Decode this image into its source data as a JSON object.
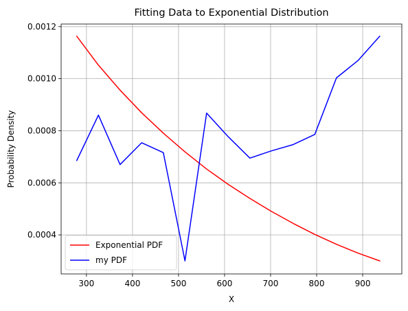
{
  "chart_data": {
    "type": "line",
    "title": "Fitting Data to Exponential Distribution",
    "xlabel": "X",
    "ylabel": "Probability Density",
    "xlim": [
      245,
      985
    ],
    "ylim": [
      0.00025,
      0.00121
    ],
    "xticks": [
      300,
      400,
      500,
      600,
      700,
      800,
      900
    ],
    "xtick_labels": [
      "300",
      "400",
      "500",
      "600",
      "700",
      "800",
      "900"
    ],
    "yticks": [
      0.0004,
      0.0006,
      0.0008,
      0.001,
      0.0012
    ],
    "ytick_labels": [
      "0.0004",
      "0.0006",
      "0.0008",
      "0.0010",
      "0.0012"
    ],
    "grid": true,
    "legend_position": "lower-left",
    "series": [
      {
        "name": "Exponential PDF",
        "color": "#ff0000",
        "x": [
          279,
          326,
          373,
          420,
          467,
          514,
          561,
          608,
          655,
          702,
          749,
          796,
          843,
          890,
          937
        ],
        "y": [
          0.001163,
          0.001052,
          0.000956,
          0.000869,
          0.000791,
          0.000719,
          0.000653,
          0.000594,
          0.00054,
          0.00049,
          0.000444,
          0.000402,
          0.000364,
          0.00033,
          0.0003
        ]
      },
      {
        "name": "my PDF",
        "color": "#0000ff",
        "x": [
          279,
          326,
          373,
          420,
          467,
          514,
          561,
          608,
          655,
          702,
          749,
          796,
          843,
          890,
          937
        ],
        "y": [
          0.000686,
          0.00086,
          0.00067,
          0.000754,
          0.000716,
          0.0003,
          0.000868,
          0.000777,
          0.000695,
          0.000723,
          0.000747,
          0.000786,
          0.001003,
          0.00107,
          0.001163
        ]
      }
    ]
  }
}
